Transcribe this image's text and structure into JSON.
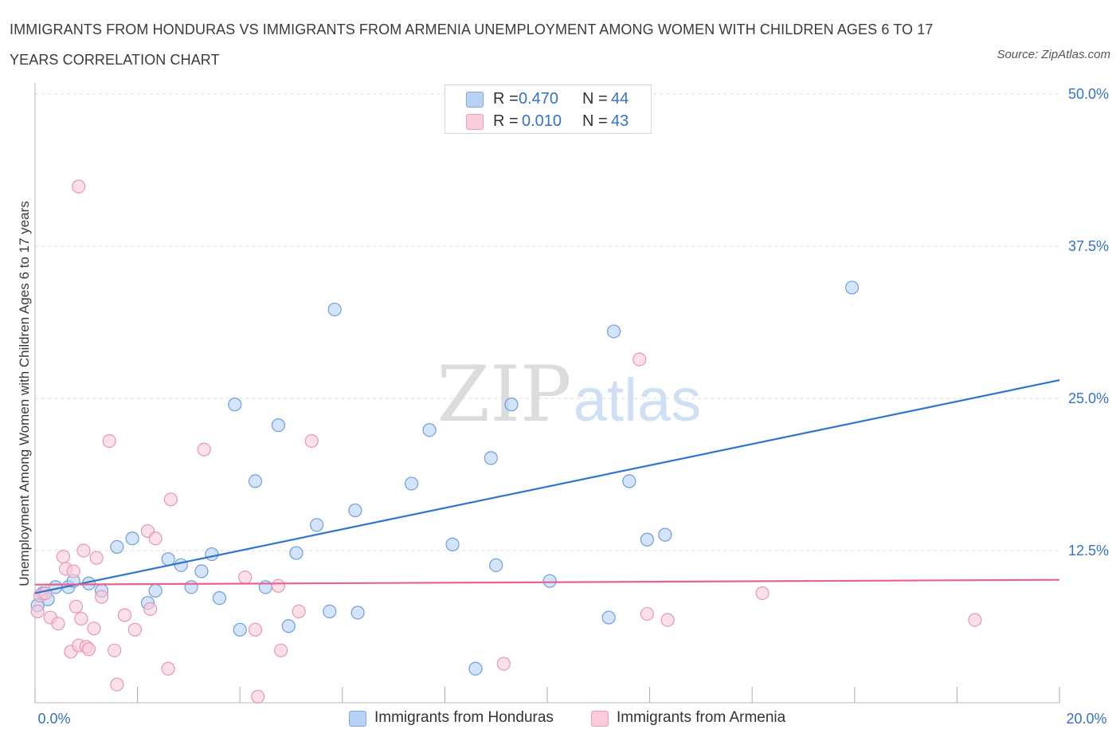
{
  "title": "IMMIGRANTS FROM HONDURAS VS IMMIGRANTS FROM ARMENIA UNEMPLOYMENT AMONG WOMEN WITH CHILDREN AGES 6 TO 17 YEARS CORRELATION CHART",
  "source": "Source: ZipAtlas.com",
  "watermark": {
    "zip": "ZIP",
    "atlas": "atlas"
  },
  "legend_stats": [
    {
      "r_label": "R =",
      "r_value": "0.470",
      "n_label": "N =",
      "n_value": "44"
    },
    {
      "r_label": "R =",
      "r_value": "0.010",
      "n_label": "N =",
      "n_value": "43"
    }
  ],
  "colors": {
    "honduras_fill": "#b8d2f6",
    "honduras_stroke": "#6d9de0",
    "honduras_line": "#2f74cf",
    "armenia_fill": "#f8ccd9",
    "armenia_stroke": "#e896b2",
    "armenia_line": "#e4638f",
    "axis_text": "#3572c6",
    "grid": "#dddddd"
  },
  "chart_data": {
    "type": "scatter",
    "title": "IMMIGRANTS FROM HONDURAS VS IMMIGRANTS FROM ARMENIA UNEMPLOYMENT AMONG WOMEN WITH CHILDREN AGES 6 TO 17 YEARS CORRELATION CHART",
    "xlabel": "",
    "ylabel": "Unemployment Among Women with Children Ages 6 to 17 years",
    "xlim": [
      0,
      20
    ],
    "ylim": [
      0,
      50
    ],
    "x_tick_labels": [
      "0.0%",
      "20.0%"
    ],
    "y_tick_values": [
      12.5,
      25.0,
      37.5,
      50.0
    ],
    "y_tick_labels": [
      "12.5%",
      "25.0%",
      "37.5%",
      "50.0%"
    ],
    "grid": true,
    "legend_position": "bottom-center",
    "series": [
      {
        "name": "Immigrants from Honduras",
        "r": 0.47,
        "n": 44,
        "trend": {
          "x": [
            0.0,
            20.0
          ],
          "y": [
            9.0,
            26.5
          ]
        },
        "points": [
          [
            0.15,
            9.0
          ],
          [
            0.25,
            8.5
          ],
          [
            0.4,
            9.5
          ],
          [
            0.65,
            9.5
          ],
          [
            0.75,
            10.0
          ],
          [
            1.05,
            9.8
          ],
          [
            1.3,
            9.2
          ],
          [
            1.6,
            12.8
          ],
          [
            1.9,
            13.5
          ],
          [
            2.2,
            8.2
          ],
          [
            2.35,
            9.2
          ],
          [
            2.6,
            11.8
          ],
          [
            2.85,
            11.3
          ],
          [
            3.05,
            9.5
          ],
          [
            3.25,
            10.8
          ],
          [
            3.45,
            12.2
          ],
          [
            3.6,
            8.6
          ],
          [
            3.9,
            24.5
          ],
          [
            4.0,
            6.0
          ],
          [
            4.3,
            18.2
          ],
          [
            4.5,
            9.5
          ],
          [
            4.75,
            22.8
          ],
          [
            4.95,
            6.3
          ],
          [
            5.1,
            12.3
          ],
          [
            5.5,
            14.6
          ],
          [
            5.75,
            7.5
          ],
          [
            5.85,
            32.3
          ],
          [
            6.25,
            15.8
          ],
          [
            6.3,
            7.4
          ],
          [
            7.35,
            18.0
          ],
          [
            7.7,
            22.4
          ],
          [
            8.15,
            13.0
          ],
          [
            8.6,
            2.8
          ],
          [
            8.9,
            20.1
          ],
          [
            9.0,
            11.3
          ],
          [
            9.3,
            24.5
          ],
          [
            10.05,
            10.0
          ],
          [
            11.2,
            7.0
          ],
          [
            11.3,
            30.5
          ],
          [
            11.6,
            18.2
          ],
          [
            11.95,
            13.4
          ],
          [
            12.3,
            13.8
          ],
          [
            15.95,
            34.1
          ],
          [
            0.05,
            8.0
          ]
        ]
      },
      {
        "name": "Immigrants from Armenia",
        "r": 0.01,
        "n": 43,
        "trend": {
          "x": [
            0.0,
            20.0
          ],
          "y": [
            9.7,
            10.1
          ]
        },
        "points": [
          [
            0.05,
            7.5
          ],
          [
            0.1,
            8.8
          ],
          [
            0.2,
            9.0
          ],
          [
            0.3,
            7.0
          ],
          [
            0.45,
            6.5
          ],
          [
            0.55,
            12.0
          ],
          [
            0.6,
            11.0
          ],
          [
            0.7,
            4.2
          ],
          [
            0.75,
            10.8
          ],
          [
            0.8,
            7.9
          ],
          [
            0.85,
            4.7
          ],
          [
            0.85,
            42.4
          ],
          [
            0.9,
            6.9
          ],
          [
            0.95,
            12.5
          ],
          [
            1.0,
            4.6
          ],
          [
            1.05,
            4.4
          ],
          [
            1.15,
            6.1
          ],
          [
            1.2,
            11.9
          ],
          [
            1.3,
            8.7
          ],
          [
            1.45,
            21.5
          ],
          [
            1.6,
            1.5
          ],
          [
            1.55,
            4.3
          ],
          [
            1.75,
            7.2
          ],
          [
            1.95,
            6.0
          ],
          [
            2.2,
            14.1
          ],
          [
            2.25,
            7.7
          ],
          [
            2.35,
            13.5
          ],
          [
            2.6,
            2.8
          ],
          [
            2.65,
            16.7
          ],
          [
            3.3,
            20.8
          ],
          [
            4.1,
            10.3
          ],
          [
            4.3,
            6.0
          ],
          [
            4.35,
            0.5
          ],
          [
            4.75,
            9.6
          ],
          [
            4.8,
            4.3
          ],
          [
            5.15,
            7.5
          ],
          [
            5.4,
            21.5
          ],
          [
            9.15,
            3.2
          ],
          [
            11.8,
            28.2
          ],
          [
            11.95,
            7.3
          ],
          [
            12.35,
            6.8
          ],
          [
            14.2,
            9.0
          ],
          [
            18.35,
            6.8
          ]
        ]
      }
    ]
  },
  "legend_bottom": [
    {
      "label": "Immigrants from Honduras"
    },
    {
      "label": "Immigrants from Armenia"
    }
  ]
}
